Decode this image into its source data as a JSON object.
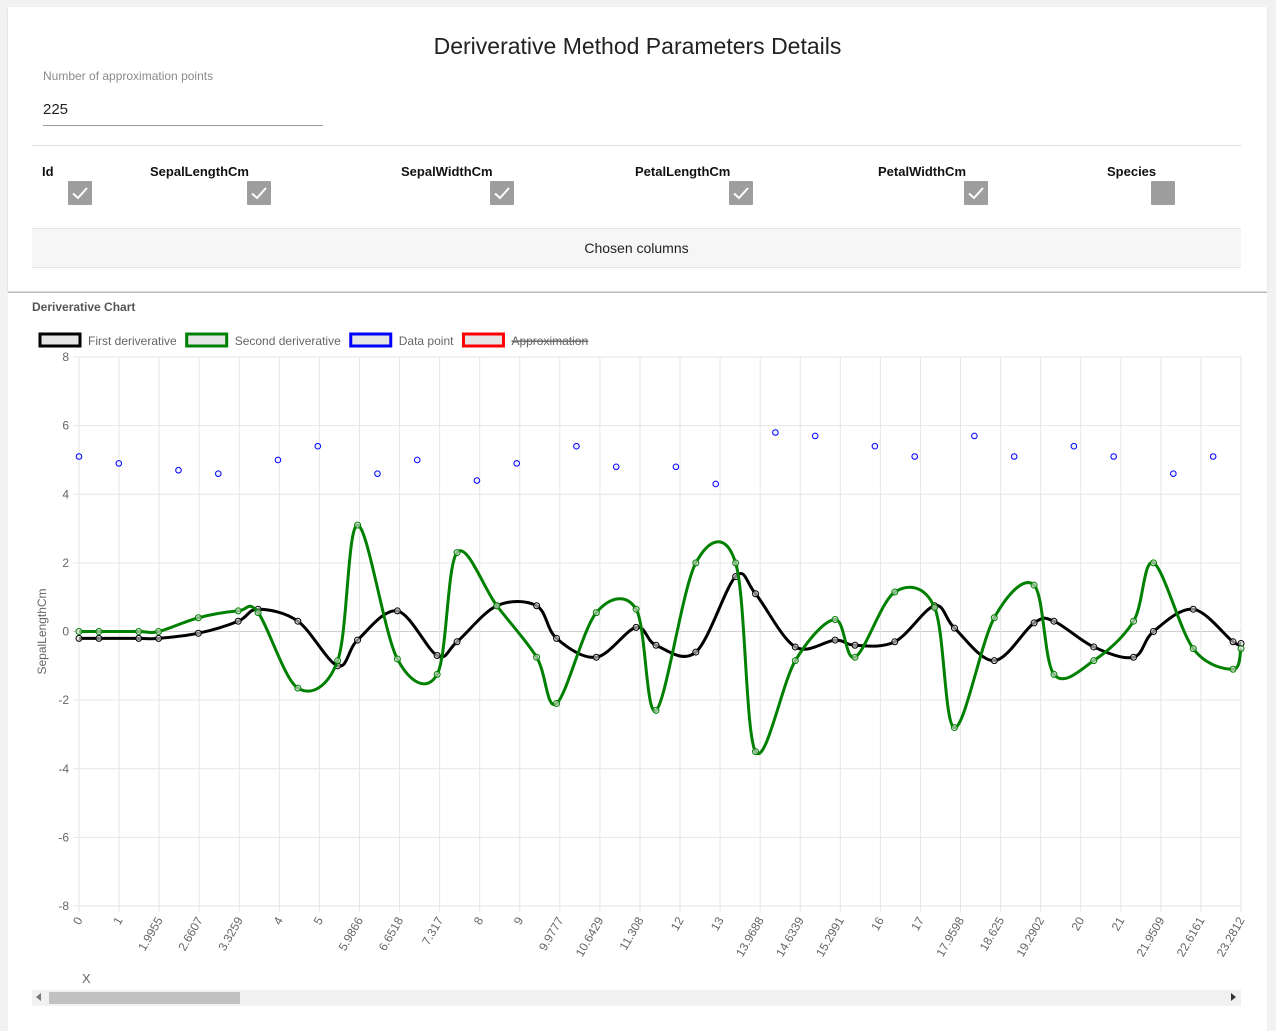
{
  "header": {
    "title": "Deriverative Method Parameters Details"
  },
  "approximation": {
    "label": "Number of approximation points",
    "value": "225"
  },
  "columns": [
    {
      "name": "Id",
      "checked": true
    },
    {
      "name": "SepalLengthCm",
      "checked": true
    },
    {
      "name": "SepalWidthCm",
      "checked": true
    },
    {
      "name": "PetalLengthCm",
      "checked": true
    },
    {
      "name": "PetalWidthCm",
      "checked": true
    },
    {
      "name": "Species",
      "checked": false
    }
  ],
  "chosen_columns_label": "Chosen columns",
  "chart_section_title": "Deriverative Chart",
  "chart_data": {
    "type": "line",
    "xlabel": "X",
    "ylabel": "SepalLengthCm",
    "ylim": [
      -8,
      8
    ],
    "yticks": [
      8,
      6,
      4,
      2,
      0,
      -2,
      -4,
      -6,
      -8
    ],
    "grid": true,
    "legend_position": "top-left",
    "categories": [
      "0",
      "1",
      "1.9955",
      "2.6607",
      "3.3259",
      "4",
      "5",
      "5.9866",
      "6.6518",
      "7.317",
      "8",
      "9",
      "9.9777",
      "10.6429",
      "11.308",
      "12",
      "13",
      "13.9688",
      "14.6339",
      "15.2991",
      "16",
      "17",
      "17.9598",
      "18.625",
      "19.2902",
      "20",
      "21",
      "21.9509",
      "22.6161",
      "23.2812"
    ],
    "series": [
      {
        "name": "First deriverative",
        "color": "#000000",
        "hidden": false,
        "points": [
          [
            0,
            -0.2
          ],
          [
            0.5,
            -0.2
          ],
          [
            1.5,
            -0.2
          ],
          [
            2,
            -0.2
          ],
          [
            3,
            -0.05
          ],
          [
            4,
            0.3
          ],
          [
            4.5,
            0.65
          ],
          [
            5.5,
            0.3
          ],
          [
            6.5,
            -1.0
          ],
          [
            7,
            -0.25
          ],
          [
            8,
            0.6
          ],
          [
            9,
            -0.7
          ],
          [
            9.5,
            -0.3
          ],
          [
            10.5,
            0.75
          ],
          [
            11.5,
            0.75
          ],
          [
            12,
            -0.2
          ],
          [
            13,
            -0.75
          ],
          [
            14,
            0.12
          ],
          [
            14.5,
            -0.4
          ],
          [
            15.5,
            -0.6
          ],
          [
            16.5,
            1.6
          ],
          [
            17,
            1.1
          ],
          [
            18,
            -0.45
          ],
          [
            19,
            -0.25
          ],
          [
            19.5,
            -0.4
          ],
          [
            20.5,
            -0.3
          ],
          [
            21.5,
            0.75
          ],
          [
            22,
            0.1
          ],
          [
            23,
            -0.85
          ],
          [
            24,
            0.25
          ],
          [
            24.5,
            0.3
          ],
          [
            25.5,
            -0.45
          ],
          [
            26.5,
            -0.75
          ],
          [
            27,
            0.0
          ],
          [
            28,
            0.65
          ],
          [
            29,
            -0.3
          ],
          [
            29.2,
            -0.35
          ]
        ]
      },
      {
        "name": "Second deriverative",
        "color": "#008000",
        "hidden": false,
        "points": [
          [
            0,
            0.0
          ],
          [
            0.5,
            0.0
          ],
          [
            1.5,
            0.0
          ],
          [
            2,
            0.0
          ],
          [
            3,
            0.4
          ],
          [
            4,
            0.6
          ],
          [
            4.5,
            0.55
          ],
          [
            5.5,
            -1.65
          ],
          [
            6.5,
            -0.85
          ],
          [
            7,
            3.1
          ],
          [
            8,
            -0.8
          ],
          [
            9,
            -1.25
          ],
          [
            9.5,
            2.3
          ],
          [
            10.5,
            0.75
          ],
          [
            11.5,
            -0.75
          ],
          [
            12,
            -2.1
          ],
          [
            13,
            0.55
          ],
          [
            14,
            0.65
          ],
          [
            14.5,
            -2.3
          ],
          [
            15.5,
            2.0
          ],
          [
            16.5,
            2.0
          ],
          [
            17,
            -3.5
          ],
          [
            18,
            -0.85
          ],
          [
            19,
            0.35
          ],
          [
            19.5,
            -0.75
          ],
          [
            20.5,
            1.15
          ],
          [
            21.5,
            0.7
          ],
          [
            22,
            -2.8
          ],
          [
            23,
            0.4
          ],
          [
            24,
            1.35
          ],
          [
            24.5,
            -1.25
          ],
          [
            25.5,
            -0.85
          ],
          [
            26.5,
            0.3
          ],
          [
            27,
            2.0
          ],
          [
            28,
            -0.5
          ],
          [
            29,
            -1.1
          ],
          [
            29.2,
            -0.5
          ]
        ]
      },
      {
        "name": "Data point",
        "color": "#0000ff",
        "hidden": false,
        "kind": "scatter",
        "points": [
          [
            0,
            5.1
          ],
          [
            1,
            4.9
          ],
          [
            2.5,
            4.7
          ],
          [
            3.5,
            4.6
          ],
          [
            5,
            5.0
          ],
          [
            6,
            5.4
          ],
          [
            7.5,
            4.6
          ],
          [
            8.5,
            5.0
          ],
          [
            10,
            4.4
          ],
          [
            11,
            4.9
          ],
          [
            12.5,
            5.4
          ],
          [
            13.5,
            4.8
          ],
          [
            15,
            4.8
          ],
          [
            16,
            4.3
          ],
          [
            17.5,
            5.8
          ],
          [
            18.5,
            5.7
          ],
          [
            20,
            5.4
          ],
          [
            21,
            5.1
          ],
          [
            22.5,
            5.7
          ],
          [
            23.5,
            5.1
          ],
          [
            25,
            5.4
          ],
          [
            26,
            5.1
          ],
          [
            27.5,
            4.6
          ],
          [
            28.5,
            5.1
          ]
        ]
      },
      {
        "name": "Approximation",
        "color": "#ff0000",
        "hidden": true,
        "points": []
      }
    ]
  }
}
